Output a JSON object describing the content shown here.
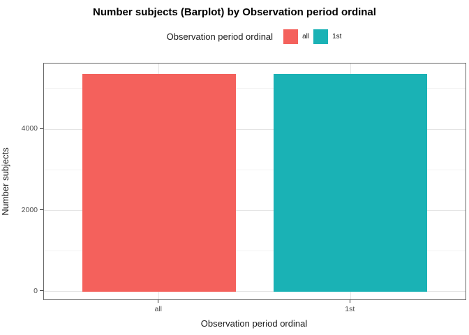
{
  "chart_data": {
    "type": "bar",
    "title": "Number subjects (Barplot) by Observation period ordinal",
    "legend_title": "Observation period ordinal",
    "xlabel": "Observation period ordinal",
    "ylabel": "Number subjects",
    "categories": [
      "all",
      "1st"
    ],
    "series": [
      {
        "name": "all",
        "value": 5360,
        "color": "#F4615C"
      },
      {
        "name": "1st",
        "value": 5360,
        "color": "#1AB2B5"
      }
    ],
    "y_major_ticks": [
      0,
      2000,
      4000
    ],
    "y_minor_ticks": [
      1000,
      3000,
      5000
    ],
    "ylim": [
      -189,
      5614
    ],
    "legend_position": "top",
    "grid": true,
    "bar_width_units": 0.8,
    "x_expand_add": 0.6,
    "colors": {
      "grid_major": "#e4e4e4",
      "grid_minor": "#f1f1f1",
      "panel_border": "#666666",
      "tick_text": "#4d4d4d",
      "tick_mark": "#333333"
    }
  }
}
